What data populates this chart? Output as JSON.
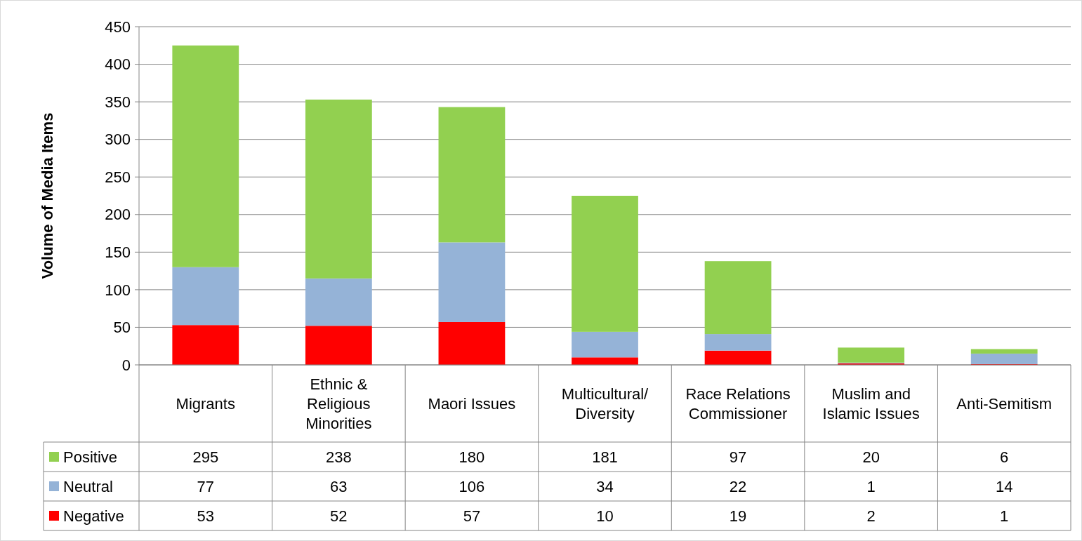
{
  "chart_data": {
    "type": "bar",
    "stacked": true,
    "ylabel": "Volume of Media Items",
    "categories": [
      "Migrants",
      "Ethnic & Religious Minorities",
      "Maori Issues",
      "Multicultural/ Diversity",
      "Race Relations Commissioner",
      "Muslim and Islamic Issues",
      "Anti-Semitism"
    ],
    "series": [
      {
        "name": "Negative",
        "color": "#ff0000",
        "values": [
          53,
          52,
          57,
          10,
          19,
          2,
          1
        ]
      },
      {
        "name": "Neutral",
        "color": "#95b3d7",
        "values": [
          77,
          63,
          106,
          34,
          22,
          1,
          14
        ]
      },
      {
        "name": "Positive",
        "color": "#92d050",
        "values": [
          295,
          238,
          180,
          181,
          97,
          20,
          6
        ]
      }
    ],
    "ylim": [
      0,
      450
    ],
    "yticks": [
      0,
      50,
      100,
      150,
      200,
      250,
      300,
      350,
      400,
      450
    ],
    "grid": "y",
    "legend": "bottom",
    "data_labels": true
  }
}
